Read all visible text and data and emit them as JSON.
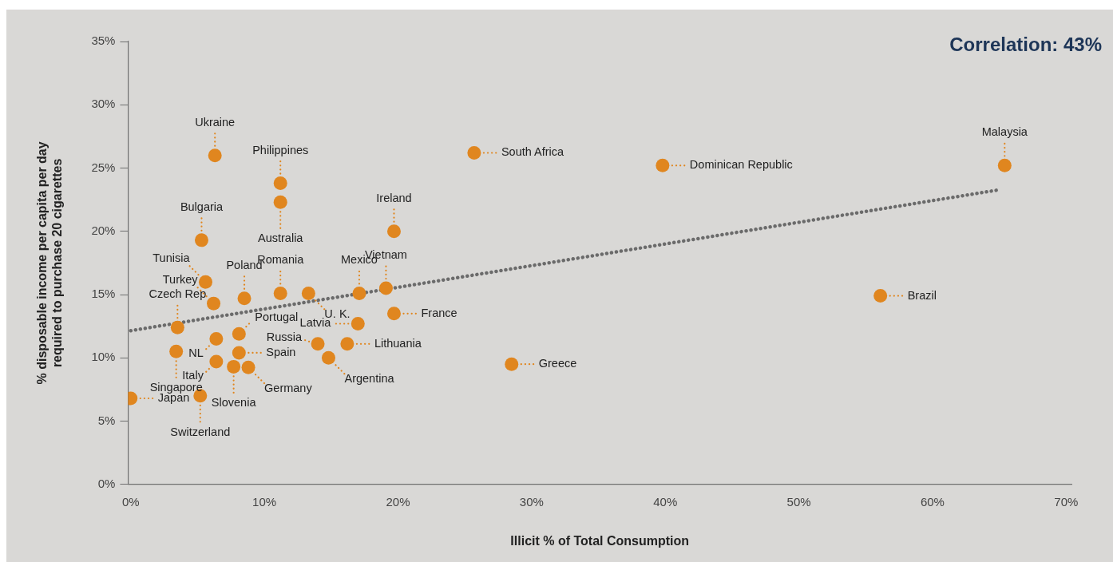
{
  "chart_data": {
    "type": "scatter",
    "title": "Correlation: 43%",
    "xlabel": "Illicit % of Total Consumption",
    "ylabel": "% disposable income per capita per day\nrequired to purchase 20 cigarettes",
    "series": [
      {
        "type": "scatter",
        "color": "#e0861f",
        "marker": "circle",
        "x": [
          0,
          5.2,
          3.4,
          3.5,
          6.4,
          6.4,
          7.7,
          8.8,
          8.1,
          8.1,
          8.5,
          6.2,
          5.6,
          5.3,
          6.3,
          11.2,
          11.2,
          11.2,
          13.3,
          14.0,
          14.8,
          16.2,
          17.0,
          17.1,
          19.1,
          19.7,
          19.7,
          28.5,
          25.7,
          39.8,
          56.1,
          65.4
        ],
        "values": [
          6.8,
          7.0,
          10.5,
          12.4,
          11.5,
          9.7,
          9.3,
          9.25,
          10.4,
          11.9,
          14.7,
          14.3,
          16.0,
          19.3,
          26.0,
          23.8,
          22.3,
          15.1,
          15.1,
          11.1,
          10.0,
          11.1,
          12.7,
          15.1,
          15.5,
          20.0,
          13.5,
          9.5,
          26.2,
          25.2,
          14.9,
          25.2
        ]
      },
      {
        "type": "line",
        "color": "#6b6b6b",
        "marker": "none",
        "line_style": "dotted",
        "x": [
          0,
          65.1
        ],
        "values": [
          12.15,
          23.3
        ]
      }
    ],
    "annotations": [
      {
        "text": "Japan",
        "x": 0,
        "y": 6.8
      },
      {
        "text": "Switzerland",
        "x": 5.2,
        "y": 7.0
      },
      {
        "text": "Singapore",
        "x": 3.4,
        "y": 10.5
      },
      {
        "text": "Czech Rep",
        "x": 3.5,
        "y": 12.4
      },
      {
        "text": "NL",
        "x": 6.4,
        "y": 11.5
      },
      {
        "text": "Italy",
        "x": 6.4,
        "y": 9.7
      },
      {
        "text": "Slovenia",
        "x": 7.7,
        "y": 9.3
      },
      {
        "text": "Germany",
        "x": 8.8,
        "y": 9.25
      },
      {
        "text": "Spain",
        "x": 8.1,
        "y": 10.4
      },
      {
        "text": "Portugal",
        "x": 8.1,
        "y": 11.9
      },
      {
        "text": "Poland",
        "x": 8.5,
        "y": 14.7
      },
      {
        "text": "Turkey",
        "x": 6.2,
        "y": 14.3
      },
      {
        "text": "Tunisia",
        "x": 5.6,
        "y": 16.0
      },
      {
        "text": "Bulgaria",
        "x": 5.3,
        "y": 19.3
      },
      {
        "text": "Ukraine",
        "x": 6.3,
        "y": 26.0
      },
      {
        "text": "Philippines",
        "x": 11.2,
        "y": 23.8
      },
      {
        "text": "Australia",
        "x": 11.2,
        "y": 22.3
      },
      {
        "text": "Romania",
        "x": 11.2,
        "y": 15.1
      },
      {
        "text": "U. K.",
        "x": 13.3,
        "y": 15.1
      },
      {
        "text": "Russia",
        "x": 14.0,
        "y": 11.1
      },
      {
        "text": "Argentina",
        "x": 14.8,
        "y": 10.0
      },
      {
        "text": "Lithuania",
        "x": 16.2,
        "y": 11.1
      },
      {
        "text": "Latvia",
        "x": 17.0,
        "y": 12.7
      },
      {
        "text": "Mexico",
        "x": 17.1,
        "y": 15.1
      },
      {
        "text": "Vietnam",
        "x": 19.1,
        "y": 15.5
      },
      {
        "text": "Ireland",
        "x": 19.7,
        "y": 20.0
      },
      {
        "text": "France",
        "x": 19.7,
        "y": 13.5
      },
      {
        "text": "Greece",
        "x": 28.5,
        "y": 9.5
      },
      {
        "text": "South Africa",
        "x": 25.7,
        "y": 26.2
      },
      {
        "text": "Dominican Republic",
        "x": 39.8,
        "y": 25.2
      },
      {
        "text": "Brazil",
        "x": 56.1,
        "y": 14.9
      },
      {
        "text": "Malaysia",
        "x": 65.4,
        "y": 25.2
      }
    ],
    "xlim": [
      -0.2,
      70.4
    ],
    "xticks": [
      {
        "value": 0,
        "label": "0%"
      },
      {
        "value": 10,
        "label": "10%"
      },
      {
        "value": 20,
        "label": "20%"
      },
      {
        "value": 30,
        "label": "30%"
      },
      {
        "value": 40,
        "label": "40%"
      },
      {
        "value": 50,
        "label": "50%"
      },
      {
        "value": 60,
        "label": "60%"
      },
      {
        "value": 70,
        "label": "70%"
      }
    ],
    "ylim": [
      0,
      35
    ],
    "yticks": [
      {
        "value": 0,
        "label": "0%"
      },
      {
        "value": 5,
        "label": "5%"
      },
      {
        "value": 10,
        "label": "10%"
      },
      {
        "value": 15,
        "label": "15%"
      },
      {
        "value": 20,
        "label": "20%"
      },
      {
        "value": 25,
        "label": "25%"
      },
      {
        "value": 30,
        "label": "30%"
      },
      {
        "value": 35,
        "label": "35%"
      }
    ],
    "grid": false,
    "legend": false
  }
}
